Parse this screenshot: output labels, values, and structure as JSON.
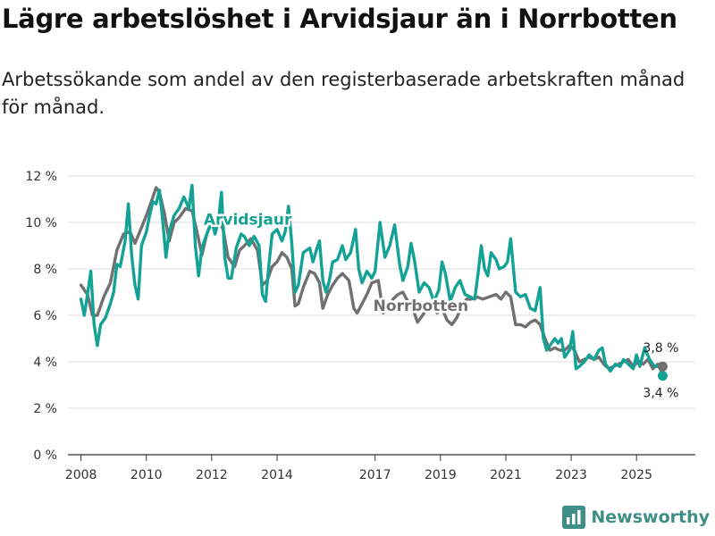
{
  "title": "Lägre arbetslöshet i Arvidsjaur än i Norrbotten",
  "subtitle": "Arbetssökande som andel av den registerbaserade arbetskraften månad för månad.",
  "brand": {
    "name": "Newsworthy",
    "icon": "newsworthy-logo-icon"
  },
  "colors": {
    "arvidsjaur": "#13a295",
    "norrbotten": "#707070",
    "grid": "#dddddd",
    "axis": "#333333"
  },
  "chart_data": {
    "type": "line",
    "title": "Lägre arbetslöshet i Arvidsjaur än i Norrbotten",
    "xlabel": "",
    "ylabel": "",
    "ylim": [
      0,
      12
    ],
    "xlim": [
      2007.6,
      2026.8
    ],
    "yticks": [
      0,
      2,
      4,
      6,
      8,
      10,
      12
    ],
    "ytick_labels": [
      "0 %",
      "2 %",
      "4 %",
      "6 %",
      "8 %",
      "10 %",
      "12 %"
    ],
    "xticks": [
      2008,
      2010,
      2012,
      2014,
      2017,
      2019,
      2021,
      2023,
      2025
    ],
    "xtick_labels": [
      "2008",
      "2010",
      "2012",
      "2014",
      "2017",
      "2019",
      "2021",
      "2023",
      "2025"
    ],
    "series": [
      {
        "name": "Arvidsjaur",
        "color": "#13a295",
        "end_label": "3,4 %",
        "points": [
          [
            2008.0,
            6.7
          ],
          [
            2008.1,
            6.0
          ],
          [
            2008.2,
            6.9
          ],
          [
            2008.3,
            7.9
          ],
          [
            2008.4,
            5.6
          ],
          [
            2008.5,
            4.7
          ],
          [
            2008.6,
            5.6
          ],
          [
            2008.75,
            5.9
          ],
          [
            2008.9,
            6.5
          ],
          [
            2009.0,
            7.0
          ],
          [
            2009.1,
            8.2
          ],
          [
            2009.2,
            8.1
          ],
          [
            2009.35,
            9.2
          ],
          [
            2009.45,
            10.8
          ],
          [
            2009.55,
            8.6
          ],
          [
            2009.65,
            7.3
          ],
          [
            2009.75,
            6.7
          ],
          [
            2009.85,
            9.0
          ],
          [
            2010.0,
            9.6
          ],
          [
            2010.1,
            10.3
          ],
          [
            2010.2,
            10.9
          ],
          [
            2010.3,
            10.8
          ],
          [
            2010.4,
            11.4
          ],
          [
            2010.5,
            10.1
          ],
          [
            2010.6,
            8.5
          ],
          [
            2010.7,
            9.6
          ],
          [
            2010.85,
            10.3
          ],
          [
            2011.0,
            10.6
          ],
          [
            2011.15,
            11.1
          ],
          [
            2011.3,
            10.6
          ],
          [
            2011.4,
            11.6
          ],
          [
            2011.5,
            9.0
          ],
          [
            2011.6,
            7.7
          ],
          [
            2011.7,
            8.9
          ],
          [
            2011.85,
            9.5
          ],
          [
            2012.0,
            10.1
          ],
          [
            2012.1,
            9.5
          ],
          [
            2012.2,
            10.0
          ],
          [
            2012.3,
            11.3
          ],
          [
            2012.4,
            8.5
          ],
          [
            2012.5,
            7.6
          ],
          [
            2012.6,
            7.6
          ],
          [
            2012.75,
            8.9
          ],
          [
            2012.9,
            9.5
          ],
          [
            2013.0,
            9.4
          ],
          [
            2013.15,
            9.0
          ],
          [
            2013.3,
            9.4
          ],
          [
            2013.45,
            9.0
          ],
          [
            2013.55,
            6.9
          ],
          [
            2013.65,
            6.6
          ],
          [
            2013.75,
            8.2
          ],
          [
            2013.85,
            9.5
          ],
          [
            2014.0,
            9.7
          ],
          [
            2014.15,
            9.2
          ],
          [
            2014.25,
            9.6
          ],
          [
            2014.35,
            10.7
          ],
          [
            2014.45,
            9.1
          ],
          [
            2014.55,
            7.0
          ],
          [
            2014.65,
            7.3
          ],
          [
            2014.8,
            8.7
          ],
          [
            2015.0,
            8.9
          ],
          [
            2015.1,
            8.3
          ],
          [
            2015.2,
            8.8
          ],
          [
            2015.3,
            9.2
          ],
          [
            2015.4,
            7.5
          ],
          [
            2015.5,
            7.0
          ],
          [
            2015.6,
            7.5
          ],
          [
            2015.7,
            8.3
          ],
          [
            2015.85,
            8.4
          ],
          [
            2016.0,
            9.0
          ],
          [
            2016.1,
            8.4
          ],
          [
            2016.25,
            8.7
          ],
          [
            2016.4,
            9.7
          ],
          [
            2016.5,
            8.0
          ],
          [
            2016.6,
            7.4
          ],
          [
            2016.75,
            7.9
          ],
          [
            2016.9,
            7.6
          ],
          [
            2017.0,
            7.9
          ],
          [
            2017.15,
            10.0
          ],
          [
            2017.3,
            8.5
          ],
          [
            2017.45,
            9.0
          ],
          [
            2017.6,
            9.9
          ],
          [
            2017.75,
            8.2
          ],
          [
            2017.85,
            7.5
          ],
          [
            2018.0,
            8.1
          ],
          [
            2018.1,
            9.1
          ],
          [
            2018.2,
            8.4
          ],
          [
            2018.35,
            7.0
          ],
          [
            2018.5,
            7.4
          ],
          [
            2018.65,
            7.2
          ],
          [
            2018.8,
            6.6
          ],
          [
            2018.95,
            7.1
          ],
          [
            2019.05,
            8.3
          ],
          [
            2019.15,
            7.8
          ],
          [
            2019.3,
            6.6
          ],
          [
            2019.45,
            7.2
          ],
          [
            2019.6,
            7.5
          ],
          [
            2019.75,
            6.9
          ],
          [
            2019.9,
            6.8
          ],
          [
            2020.05,
            6.7
          ],
          [
            2020.15,
            7.8
          ],
          [
            2020.25,
            9.0
          ],
          [
            2020.35,
            8.0
          ],
          [
            2020.45,
            7.7
          ],
          [
            2020.55,
            8.7
          ],
          [
            2020.7,
            8.4
          ],
          [
            2020.8,
            8.0
          ],
          [
            2020.95,
            8.1
          ],
          [
            2021.05,
            8.3
          ],
          [
            2021.15,
            9.3
          ],
          [
            2021.3,
            7.0
          ],
          [
            2021.45,
            6.8
          ],
          [
            2021.6,
            6.9
          ],
          [
            2021.75,
            6.3
          ],
          [
            2021.9,
            6.2
          ],
          [
            2022.05,
            7.2
          ],
          [
            2022.15,
            5.0
          ],
          [
            2022.25,
            4.5
          ],
          [
            2022.4,
            4.8
          ],
          [
            2022.5,
            5.0
          ],
          [
            2022.6,
            4.8
          ],
          [
            2022.7,
            5.0
          ],
          [
            2022.8,
            4.2
          ],
          [
            2022.95,
            4.5
          ],
          [
            2023.05,
            5.3
          ],
          [
            2023.15,
            3.7
          ],
          [
            2023.25,
            3.8
          ],
          [
            2023.4,
            4.0
          ],
          [
            2023.55,
            4.3
          ],
          [
            2023.7,
            4.1
          ],
          [
            2023.85,
            4.5
          ],
          [
            2023.95,
            4.6
          ],
          [
            2024.05,
            3.9
          ],
          [
            2024.2,
            3.6
          ],
          [
            2024.35,
            3.9
          ],
          [
            2024.5,
            3.8
          ],
          [
            2024.6,
            4.1
          ],
          [
            2024.75,
            3.9
          ],
          [
            2024.9,
            3.7
          ],
          [
            2025.0,
            4.3
          ],
          [
            2025.1,
            3.8
          ],
          [
            2025.25,
            4.6
          ],
          [
            2025.4,
            4.1
          ],
          [
            2025.55,
            3.8
          ],
          [
            2025.7,
            3.8
          ],
          [
            2025.8,
            3.4
          ]
        ]
      },
      {
        "name": "Norrbotten",
        "color": "#707070",
        "end_label": "3,8 %",
        "points": [
          [
            2008.0,
            7.3
          ],
          [
            2008.2,
            6.9
          ],
          [
            2008.35,
            6.0
          ],
          [
            2008.5,
            6.0
          ],
          [
            2008.7,
            6.8
          ],
          [
            2008.9,
            7.4
          ],
          [
            2009.1,
            8.8
          ],
          [
            2009.3,
            9.5
          ],
          [
            2009.5,
            9.6
          ],
          [
            2009.65,
            9.1
          ],
          [
            2009.8,
            9.6
          ],
          [
            2010.0,
            10.3
          ],
          [
            2010.2,
            11.1
          ],
          [
            2010.3,
            11.5
          ],
          [
            2010.4,
            11.3
          ],
          [
            2010.55,
            10.4
          ],
          [
            2010.7,
            9.2
          ],
          [
            2010.85,
            10.0
          ],
          [
            2011.0,
            10.2
          ],
          [
            2011.2,
            10.6
          ],
          [
            2011.4,
            10.5
          ],
          [
            2011.55,
            9.6
          ],
          [
            2011.7,
            8.6
          ],
          [
            2011.85,
            9.5
          ],
          [
            2012.0,
            10.0
          ],
          [
            2012.2,
            10.1
          ],
          [
            2012.35,
            9.7
          ],
          [
            2012.5,
            8.5
          ],
          [
            2012.7,
            8.1
          ],
          [
            2012.85,
            8.8
          ],
          [
            2013.0,
            9.0
          ],
          [
            2013.2,
            9.3
          ],
          [
            2013.4,
            8.8
          ],
          [
            2013.55,
            7.3
          ],
          [
            2013.7,
            7.5
          ],
          [
            2013.85,
            8.1
          ],
          [
            2014.0,
            8.3
          ],
          [
            2014.15,
            8.7
          ],
          [
            2014.3,
            8.5
          ],
          [
            2014.45,
            8.0
          ],
          [
            2014.55,
            6.4
          ],
          [
            2014.65,
            6.5
          ],
          [
            2014.8,
            7.2
          ],
          [
            2015.0,
            7.9
          ],
          [
            2015.15,
            7.8
          ],
          [
            2015.3,
            7.4
          ],
          [
            2015.4,
            6.3
          ],
          [
            2015.55,
            6.9
          ],
          [
            2015.7,
            7.3
          ],
          [
            2015.85,
            7.6
          ],
          [
            2016.0,
            7.8
          ],
          [
            2016.2,
            7.5
          ],
          [
            2016.35,
            6.3
          ],
          [
            2016.45,
            6.1
          ],
          [
            2016.6,
            6.5
          ],
          [
            2016.75,
            6.9
          ],
          [
            2016.9,
            7.4
          ],
          [
            2017.1,
            7.5
          ],
          [
            2017.25,
            6.1
          ],
          [
            2017.4,
            6.3
          ],
          [
            2017.55,
            6.7
          ],
          [
            2017.7,
            6.9
          ],
          [
            2017.85,
            7.0
          ],
          [
            2018.0,
            6.6
          ],
          [
            2018.15,
            6.3
          ],
          [
            2018.3,
            5.7
          ],
          [
            2018.45,
            6.0
          ],
          [
            2018.6,
            6.3
          ],
          [
            2018.75,
            6.4
          ],
          [
            2018.9,
            6.1
          ],
          [
            2019.05,
            6.3
          ],
          [
            2019.2,
            5.8
          ],
          [
            2019.35,
            5.6
          ],
          [
            2019.5,
            5.9
          ],
          [
            2019.65,
            6.4
          ],
          [
            2019.8,
            6.7
          ],
          [
            2019.95,
            6.7
          ],
          [
            2020.1,
            6.8
          ],
          [
            2020.3,
            6.7
          ],
          [
            2020.5,
            6.8
          ],
          [
            2020.7,
            6.9
          ],
          [
            2020.85,
            6.7
          ],
          [
            2021.0,
            7.0
          ],
          [
            2021.15,
            6.8
          ],
          [
            2021.3,
            5.6
          ],
          [
            2021.45,
            5.6
          ],
          [
            2021.6,
            5.5
          ],
          [
            2021.75,
            5.7
          ],
          [
            2021.9,
            5.8
          ],
          [
            2022.05,
            5.6
          ],
          [
            2022.2,
            5.0
          ],
          [
            2022.35,
            4.5
          ],
          [
            2022.5,
            4.6
          ],
          [
            2022.65,
            4.5
          ],
          [
            2022.8,
            4.5
          ],
          [
            2022.95,
            4.7
          ],
          [
            2023.1,
            4.5
          ],
          [
            2023.25,
            4.0
          ],
          [
            2023.4,
            4.1
          ],
          [
            2023.55,
            4.2
          ],
          [
            2023.7,
            4.1
          ],
          [
            2023.85,
            4.2
          ],
          [
            2024.0,
            3.9
          ],
          [
            2024.15,
            3.7
          ],
          [
            2024.3,
            3.8
          ],
          [
            2024.45,
            3.9
          ],
          [
            2024.6,
            4.0
          ],
          [
            2024.75,
            4.1
          ],
          [
            2024.9,
            3.8
          ],
          [
            2025.05,
            4.0
          ],
          [
            2025.2,
            3.9
          ],
          [
            2025.35,
            4.1
          ],
          [
            2025.5,
            3.7
          ],
          [
            2025.65,
            3.9
          ],
          [
            2025.8,
            3.8
          ]
        ]
      }
    ],
    "annotations": [
      {
        "text": "Arvidsjaur",
        "series": "Arvidsjaur",
        "at": [
          2013.1,
          9.9
        ]
      },
      {
        "text": "Norrbotten",
        "series": "Norrbotten",
        "at": [
          2018.4,
          6.2
        ]
      }
    ]
  }
}
